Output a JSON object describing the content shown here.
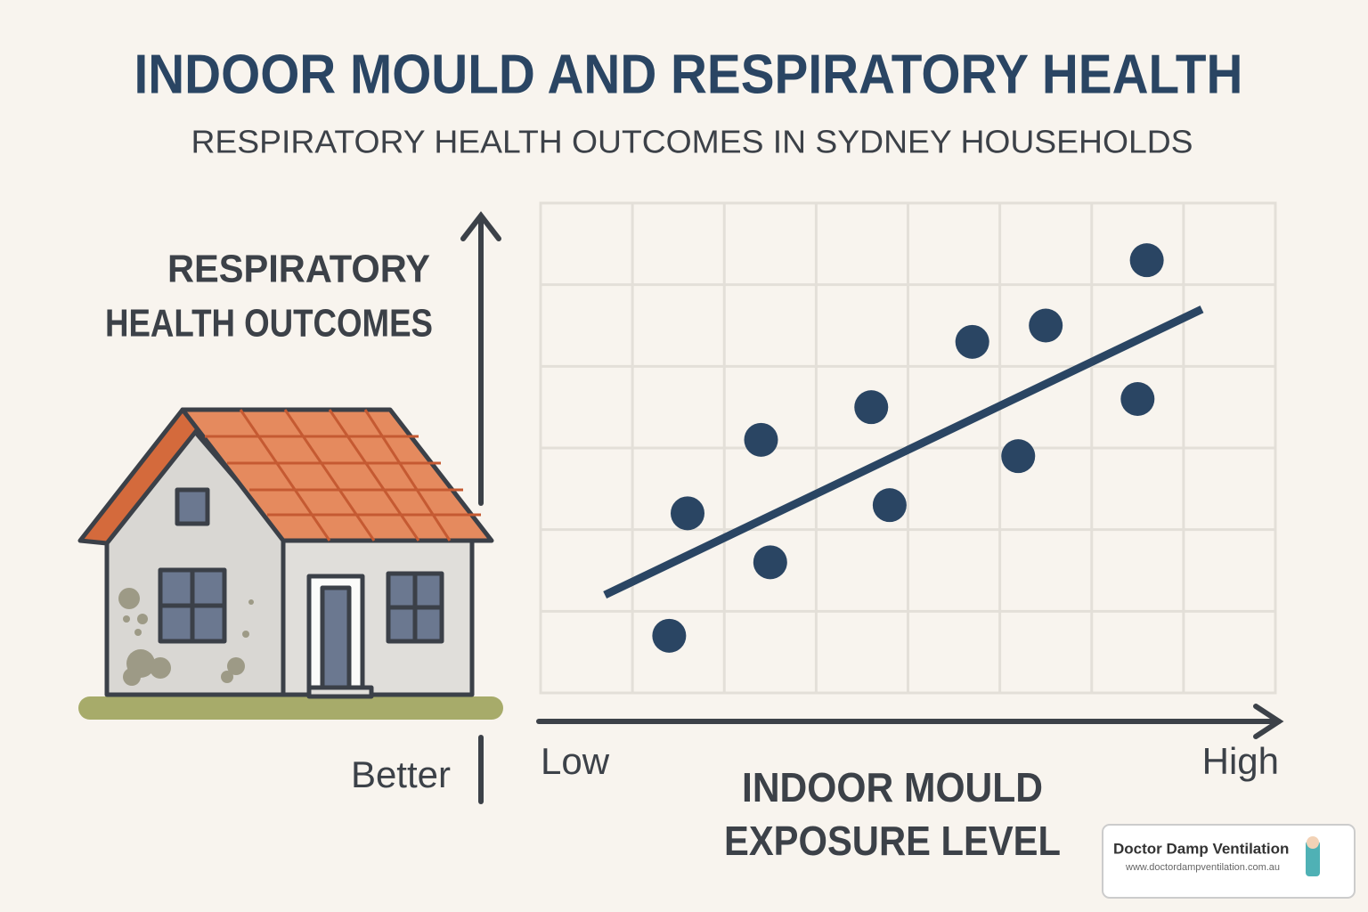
{
  "chart_data": {
    "type": "scatter",
    "title": "INDOOR MOULD AND RESPIRATORY HEALTH",
    "subtitle": "RESPIRATORY HEALTH OUTCOMES IN SYDNEY HOUSEHOLDS",
    "y_label": [
      "RESPIRATORY",
      "HEALTH OUTCOMES"
    ],
    "y_axis_end_label": "Better",
    "x_axis_start_label": "Low",
    "x_axis_end_label": "High",
    "x_label": [
      "INDOOR MOULD",
      "EXPOSURE LEVEL"
    ],
    "xlim": [
      0,
      8
    ],
    "ylim": [
      0,
      6
    ],
    "grid": true,
    "color": "#2a4563",
    "x": [
      1.6,
      1.4,
      2.4,
      2.5,
      3.6,
      3.8,
      4.7,
      5.2,
      5.5,
      6.5,
      6.6
    ],
    "values": [
      2.2,
      0.7,
      3.1,
      1.6,
      3.5,
      2.3,
      4.3,
      2.9,
      4.5,
      3.6,
      5.3
    ],
    "trend": {
      "x": [
        0.7,
        7.2
      ],
      "values": [
        1.2,
        4.7
      ]
    }
  },
  "branding": {
    "name": "Doctor Damp Ventilation",
    "url": "www.doctordampventilation.com.au"
  }
}
